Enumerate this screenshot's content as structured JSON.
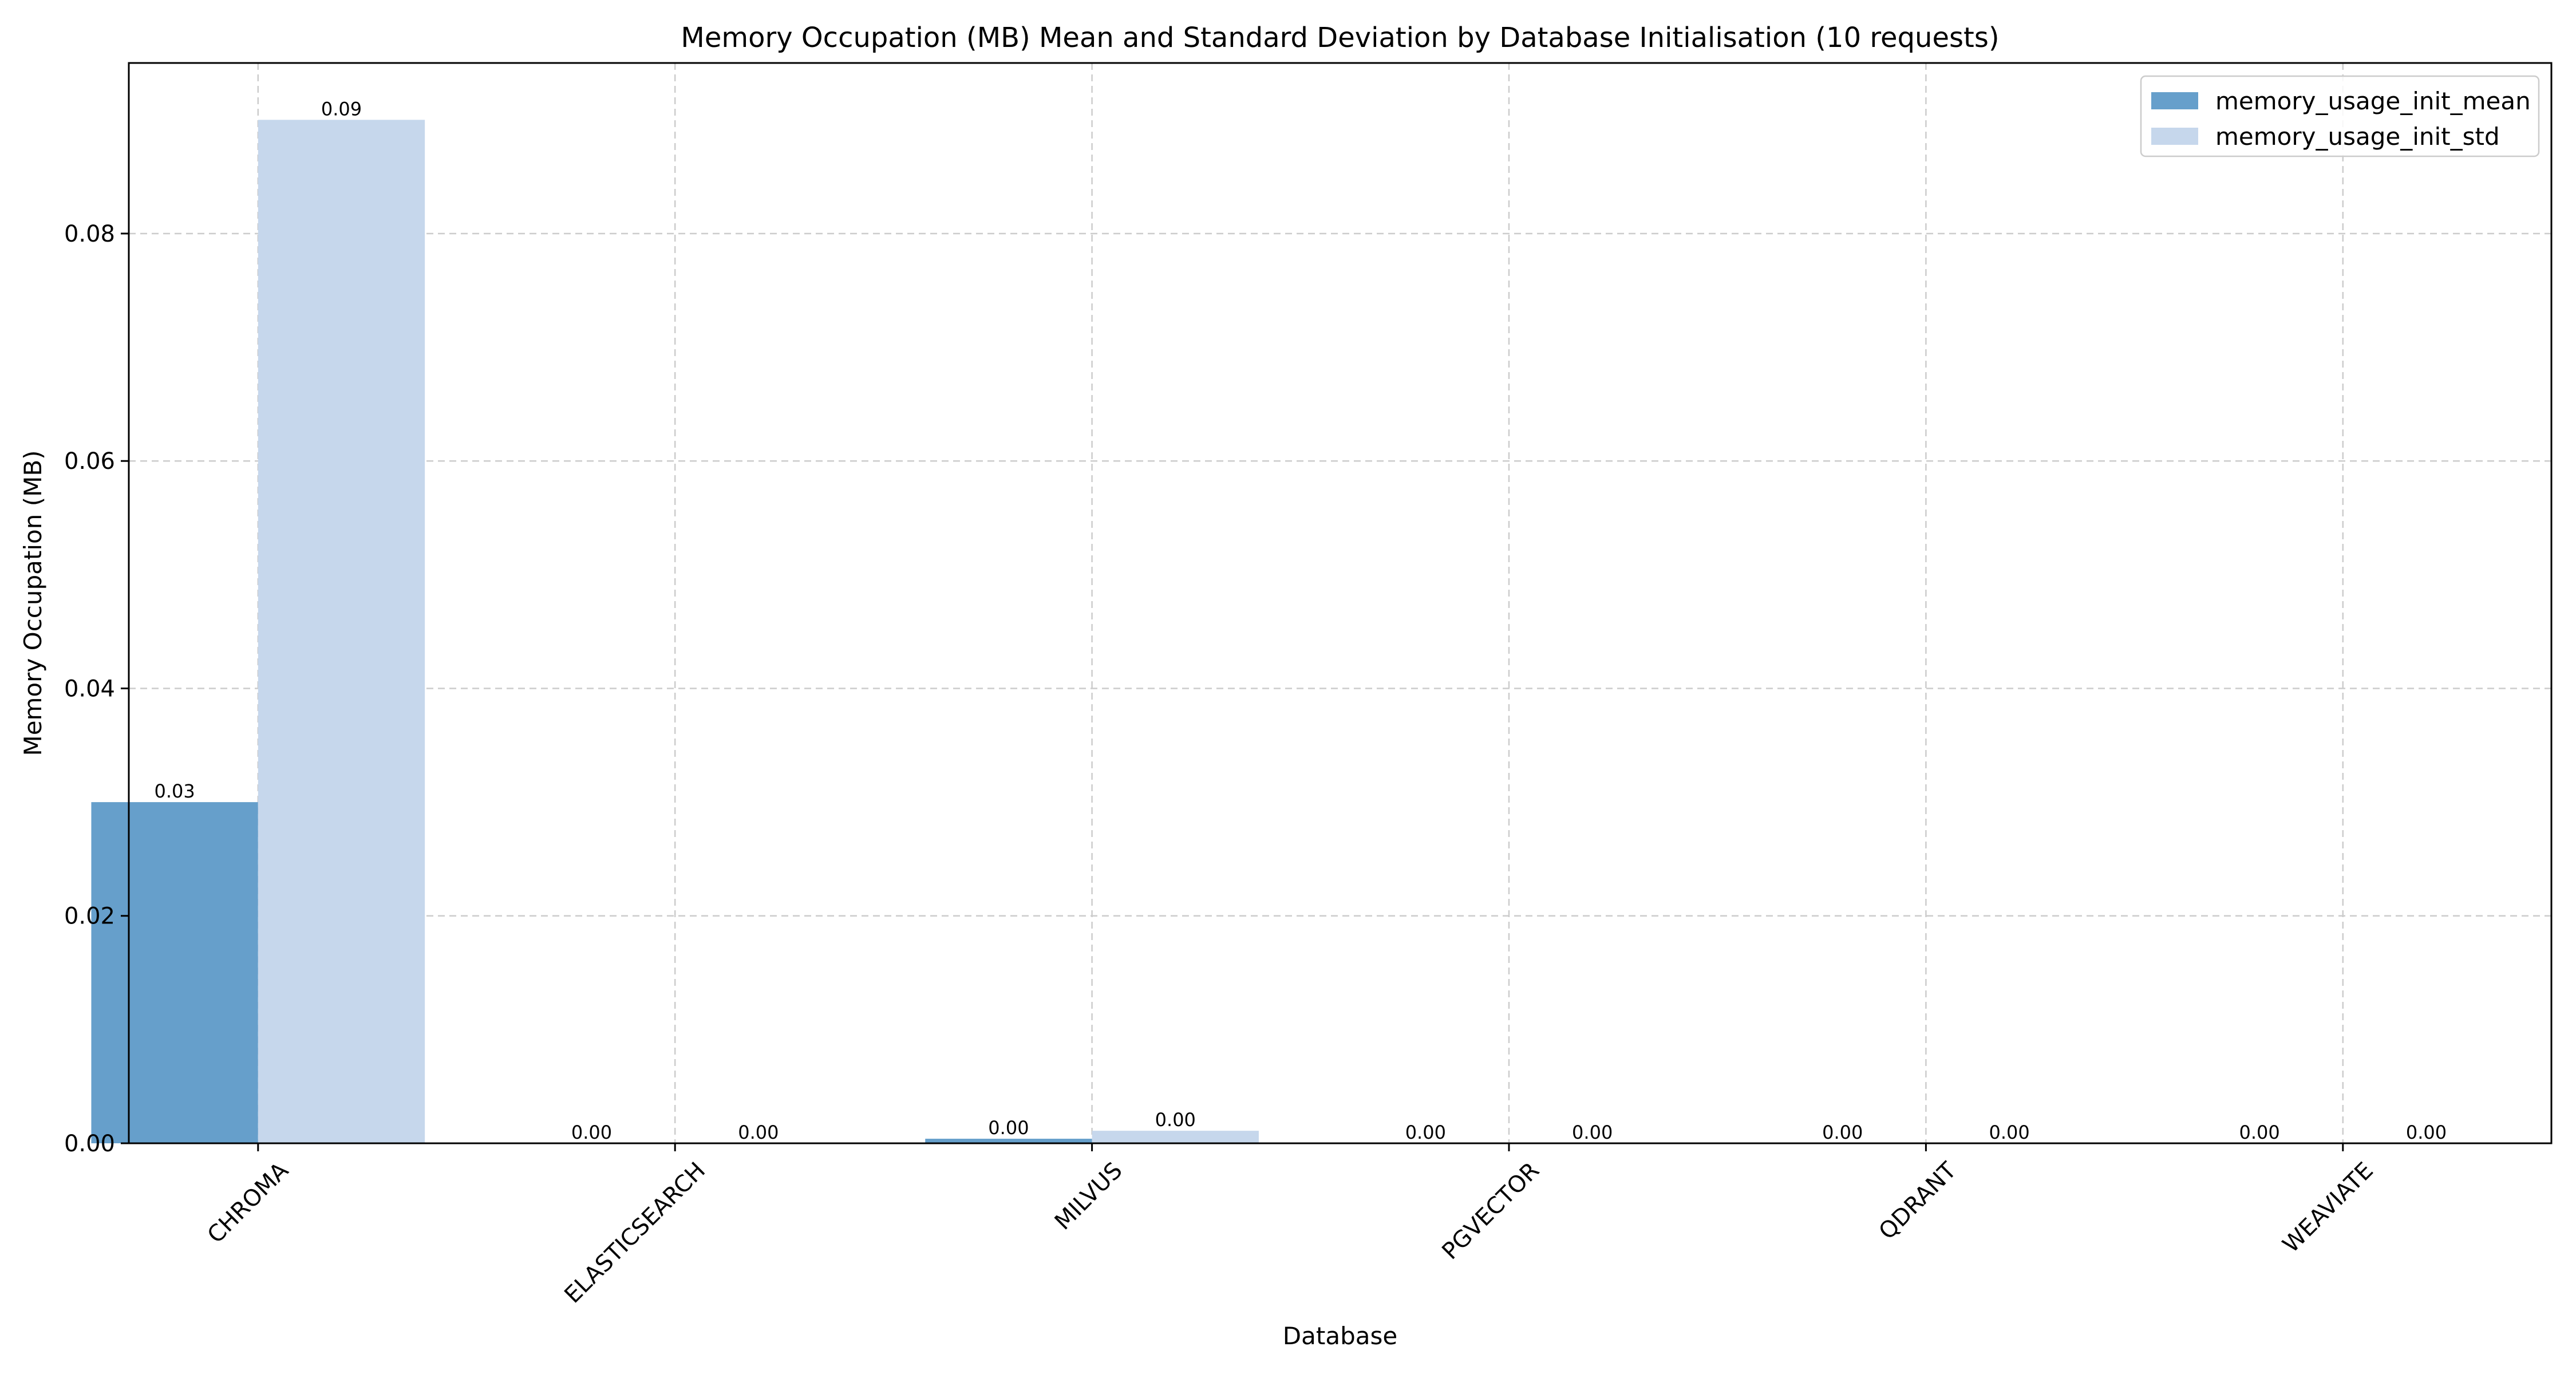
{
  "chart_data": {
    "type": "bar",
    "title": "Memory Occupation (MB) Mean and Standard Deviation by Database Initialisation (10 requests)",
    "xlabel": "Database",
    "ylabel": "Memory Occupation (MB)",
    "categories": [
      "CHROMA",
      "ELASTICSEARCH",
      "MILVUS",
      "PGVECTOR",
      "QDRANT",
      "WEAVIATE"
    ],
    "series": [
      {
        "name": "memory_usage_init_mean",
        "color": "#669fcb",
        "values": [
          0.03,
          0.0,
          0.0004,
          0.0,
          0.0,
          0.0
        ],
        "labels": [
          "0.03",
          "0.00",
          "0.00",
          "0.00",
          "0.00",
          "0.00"
        ]
      },
      {
        "name": "memory_usage_init_std",
        "color": "#c6d7ec",
        "values": [
          0.09,
          0.0,
          0.0011,
          0.0,
          0.0,
          0.0
        ],
        "labels": [
          "0.09",
          "0.00",
          "0.00",
          "0.00",
          "0.00",
          "0.00"
        ]
      }
    ],
    "ylim": [
      0,
      0.095
    ],
    "yticks": [
      0.0,
      0.02,
      0.04,
      0.06,
      0.08
    ],
    "ytick_labels": [
      "0.00",
      "0.02",
      "0.04",
      "0.06",
      "0.08"
    ],
    "grid": true,
    "legend": "top-right"
  }
}
